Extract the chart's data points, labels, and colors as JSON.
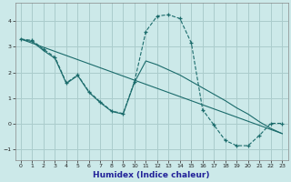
{
  "xlabel": "Humidex (Indice chaleur)",
  "bg_color": "#cce9e9",
  "grid_color": "#aacccc",
  "line_color": "#1a6b6b",
  "xlim": [
    -0.5,
    23.5
  ],
  "ylim": [
    -1.4,
    4.7
  ],
  "xticks": [
    0,
    1,
    2,
    3,
    4,
    5,
    6,
    7,
    8,
    9,
    10,
    11,
    12,
    13,
    14,
    15,
    16,
    17,
    18,
    19,
    20,
    21,
    22,
    23
  ],
  "yticks": [
    -1,
    0,
    1,
    2,
    3,
    4
  ],
  "line1_x": [
    0,
    1,
    2,
    3,
    4,
    5,
    6,
    7,
    8,
    9,
    10,
    11,
    12,
    13,
    14,
    15,
    16,
    17,
    18,
    19,
    20,
    21,
    22,
    23
  ],
  "line1_y": [
    3.3,
    3.25,
    2.9,
    2.6,
    1.6,
    1.9,
    1.25,
    0.85,
    0.5,
    0.4,
    1.65,
    3.6,
    4.2,
    4.25,
    4.1,
    3.15,
    0.55,
    -0.05,
    -0.65,
    -0.85,
    -0.85,
    -0.45,
    0.02,
    0.02
  ],
  "line2_x": [
    0,
    1,
    2,
    3,
    4,
    5,
    6,
    7,
    8,
    9,
    10,
    11,
    12,
    13,
    14,
    15,
    16,
    17,
    18,
    19,
    20,
    21,
    22,
    23
  ],
  "line2_y": [
    3.3,
    3.2,
    2.85,
    2.55,
    1.57,
    1.88,
    1.22,
    0.82,
    0.48,
    0.38,
    1.62,
    2.45,
    2.3,
    2.1,
    1.9,
    1.65,
    1.4,
    1.15,
    0.9,
    0.62,
    0.38,
    0.08,
    -0.18,
    -0.38
  ],
  "line3_x": [
    0,
    23
  ],
  "line3_y": [
    3.3,
    -0.38
  ]
}
